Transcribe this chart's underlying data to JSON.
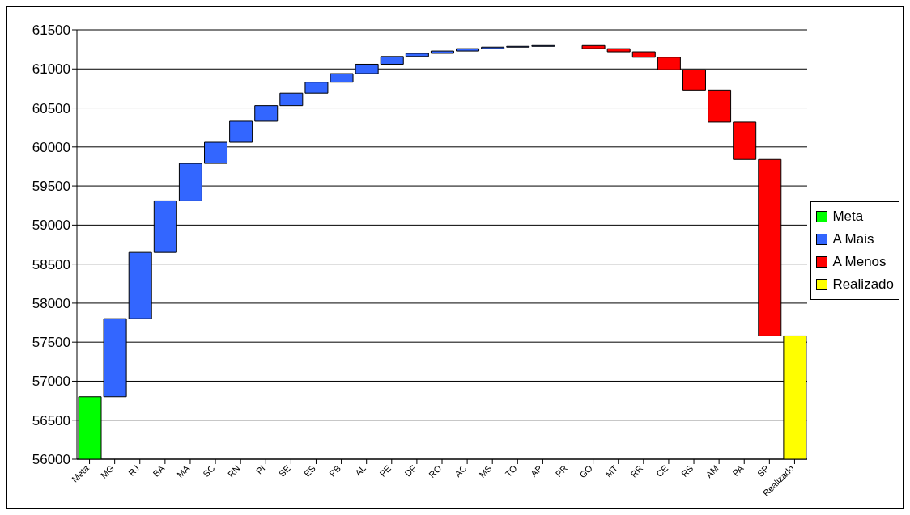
{
  "chart_data": {
    "type": "bar",
    "categories": [
      "Meta",
      "MG",
      "RJ",
      "BA",
      "MA",
      "SC",
      "RN",
      "PI",
      "SE",
      "ES",
      "PB",
      "AL",
      "PE",
      "DF",
      "RO",
      "AC",
      "MS",
      "TO",
      "AP",
      "PR",
      "GO",
      "MT",
      "RR",
      "CE",
      "RS",
      "AM",
      "PA",
      "SP",
      "Realizado"
    ],
    "series": [
      {
        "name": "Meta",
        "color": "#00ff00",
        "values": [
          56800,
          null,
          null,
          null,
          null,
          null,
          null,
          null,
          null,
          null,
          null,
          null,
          null,
          null,
          null,
          null,
          null,
          null,
          null,
          null,
          null,
          null,
          null,
          null,
          null,
          null,
          null,
          null,
          null
        ]
      },
      {
        "name": "A Mais",
        "color": "#3366ff",
        "values": [
          null,
          1000,
          850,
          660,
          480,
          270,
          270,
          200,
          160,
          140,
          110,
          120,
          100,
          40,
          30,
          30,
          20,
          10,
          10,
          null,
          null,
          null,
          null,
          null,
          null,
          null,
          null,
          null,
          null
        ],
        "base": [
          null,
          56800,
          57800,
          58650,
          59310,
          59790,
          60060,
          60330,
          60530,
          60690,
          60830,
          60940,
          61060,
          61160,
          61200,
          61230,
          61260,
          61280,
          61290,
          null,
          null,
          null,
          null,
          null,
          null,
          null,
          null,
          null,
          null
        ]
      },
      {
        "name": "A Menos",
        "color": "#ff0000",
        "values": [
          null,
          null,
          null,
          null,
          null,
          null,
          null,
          null,
          null,
          null,
          null,
          null,
          null,
          null,
          null,
          null,
          null,
          null,
          null,
          null,
          -40,
          -40,
          -70,
          -160,
          -260,
          -410,
          -480,
          -2260,
          null
        ],
        "base": [
          null,
          null,
          null,
          null,
          null,
          null,
          null,
          null,
          null,
          null,
          null,
          null,
          null,
          null,
          null,
          null,
          null,
          null,
          null,
          null,
          61300,
          61260,
          61220,
          61150,
          60990,
          60730,
          60320,
          59840,
          null
        ]
      },
      {
        "name": "Realizado",
        "color": "#ffff00",
        "values": [
          null,
          null,
          null,
          null,
          null,
          null,
          null,
          null,
          null,
          null,
          null,
          null,
          null,
          null,
          null,
          null,
          null,
          null,
          null,
          null,
          null,
          null,
          null,
          null,
          null,
          null,
          null,
          null,
          57580
        ]
      }
    ],
    "ylim": [
      56000,
      61500
    ],
    "yticks": [
      56000,
      56500,
      57000,
      57500,
      58000,
      58500,
      59000,
      59500,
      60000,
      60500,
      61000,
      61500
    ],
    "grid": "y",
    "legend": "right"
  }
}
